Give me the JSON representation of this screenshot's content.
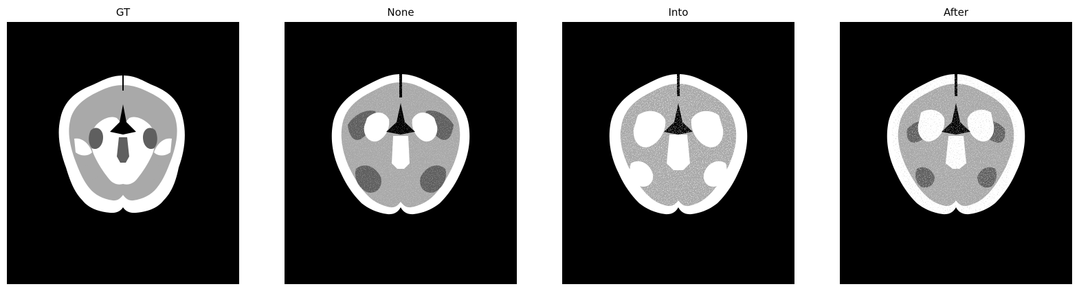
{
  "panels": [
    {
      "title": "GT"
    },
    {
      "title": "None"
    },
    {
      "title": "Into"
    },
    {
      "title": "After"
    }
  ],
  "colors": {
    "background": "#000000",
    "white_matter": "#ffffff",
    "gray_matter": "#a9a9a9",
    "csf": "#5f5f5f"
  }
}
